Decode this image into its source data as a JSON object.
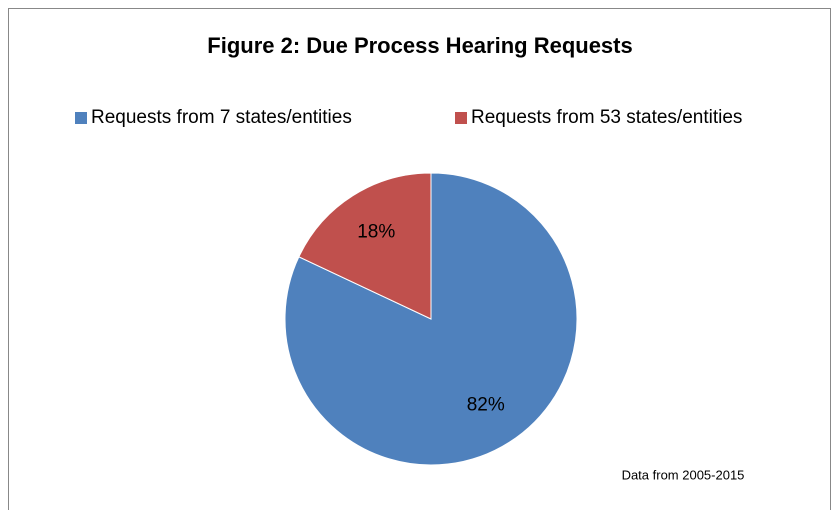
{
  "chart_data": {
    "type": "pie",
    "title": "Figure 2: Due Process Hearing Requests",
    "categories": [
      "Requests from 7 states/entities",
      "Requests from 53 states/entities"
    ],
    "values": [
      82,
      18
    ],
    "value_labels": [
      "82%",
      "18%"
    ],
    "colors": [
      "#4f81bd",
      "#c0504d"
    ],
    "legend": "top",
    "annotation": "Data from 2005-2015"
  }
}
